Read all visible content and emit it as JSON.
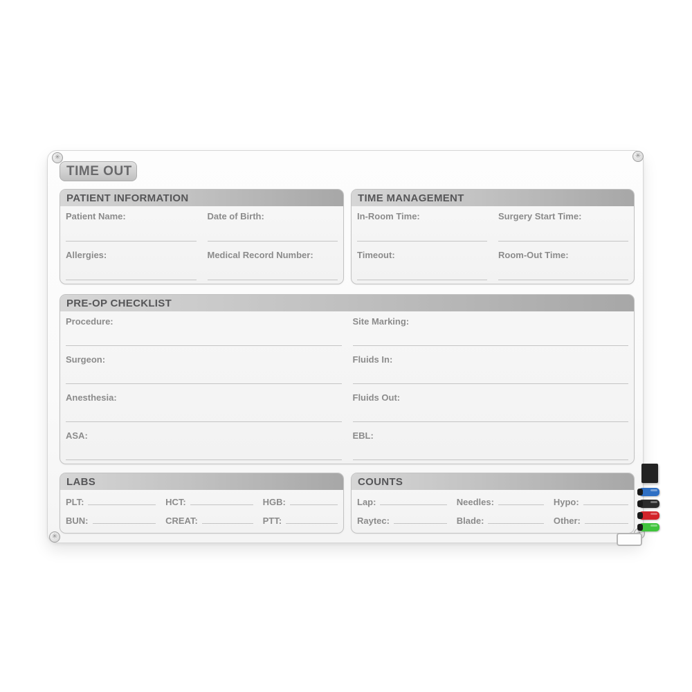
{
  "board_title": "TIME OUT",
  "sections": {
    "patient_information": {
      "header": "PATIENT INFORMATION",
      "row1": {
        "left": "Patient Name:",
        "right": "Date of Birth:"
      },
      "row2": {
        "left": "Allergies:",
        "right": "Medical Record Number:"
      }
    },
    "time_management": {
      "header": "TIME MANAGEMENT",
      "row1": {
        "left": "In-Room Time:",
        "right": "Surgery Start Time:"
      },
      "row2": {
        "left": "Timeout:",
        "right": "Room-Out Time:"
      }
    },
    "preop_checklist": {
      "header": "PRE-OP CHECKLIST",
      "left_fields": [
        "Procedure:",
        "Surgeon:",
        "Anesthesia:",
        "ASA:"
      ],
      "right_fields": [
        "Site Marking:",
        "Fluids In:",
        "Fluids Out:",
        "EBL:"
      ]
    },
    "labs": {
      "header": "LABS",
      "row1": [
        "PLT:",
        "HCT:",
        "HGB:"
      ],
      "row2": [
        "BUN:",
        "CREAT:",
        "PTT:"
      ]
    },
    "counts": {
      "header": "COUNTS",
      "row1": [
        "Lap:",
        "Needles:",
        "Hypo:"
      ],
      "row2": [
        "Raytec:",
        "Blade:",
        "Other:"
      ]
    }
  },
  "accessories": {
    "eraser_color": "#232323",
    "markers": [
      {
        "name": "blue-marker",
        "color": "#2e6fc4"
      },
      {
        "name": "black-marker",
        "color": "#2b2b2b"
      },
      {
        "name": "red-marker",
        "color": "#d2232a"
      },
      {
        "name": "green-marker",
        "color": "#3fc43c"
      }
    ]
  },
  "colors": {
    "header_bar_light": "#d6d6d6",
    "header_bar_dark": "#a7a7a7",
    "header_text": "#565658",
    "label_text": "#8b8b8b",
    "line": "#c4c4c4"
  }
}
